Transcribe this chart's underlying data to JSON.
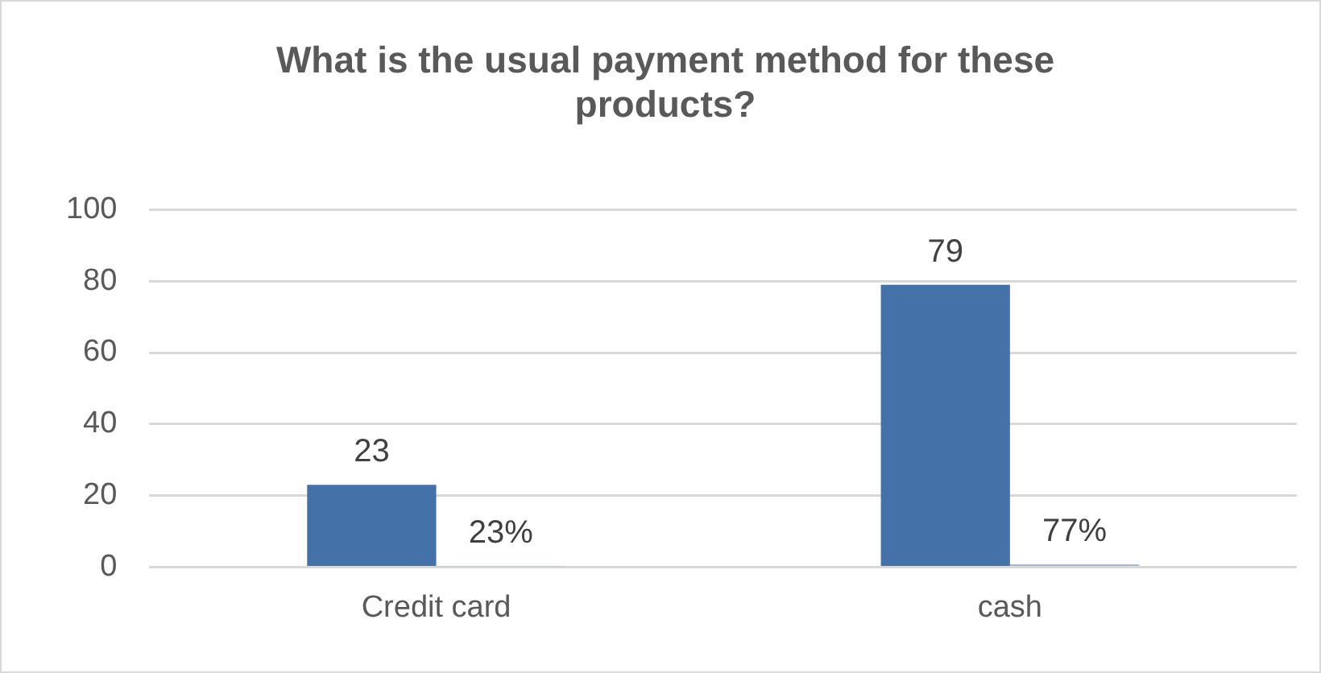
{
  "chart_data": {
    "type": "bar",
    "title": "What is the usual payment method for these products?",
    "categories": [
      "Credit card",
      "cash"
    ],
    "series": [
      {
        "color": "#4472a8",
        "values": [
          23,
          79
        ],
        "value_labels": [
          "23",
          "79"
        ]
      },
      {
        "color": "#a9b8cf",
        "values": [
          0.23,
          0.77
        ],
        "value_labels": [
          "23%",
          "77%"
        ]
      }
    ],
    "ylim": [
      0,
      100
    ],
    "yticks": [
      0,
      20,
      40,
      60,
      80,
      100
    ],
    "grid": "y",
    "legend": false
  }
}
